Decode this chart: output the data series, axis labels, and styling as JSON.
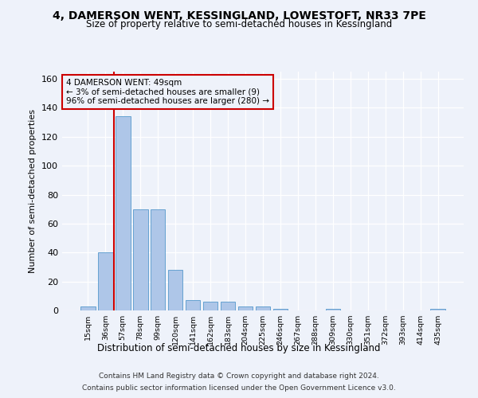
{
  "title": "4, DAMERSON WENT, KESSINGLAND, LOWESTOFT, NR33 7PE",
  "subtitle": "Size of property relative to semi-detached houses in Kessingland",
  "xlabel": "Distribution of semi-detached houses by size in Kessingland",
  "ylabel": "Number of semi-detached properties",
  "footer_line1": "Contains HM Land Registry data © Crown copyright and database right 2024.",
  "footer_line2": "Contains public sector information licensed under the Open Government Licence v3.0.",
  "annotation_line1": "4 DAMERSON WENT: 49sqm",
  "annotation_line2": "← 3% of semi-detached houses are smaller (9)",
  "annotation_line3": "96% of semi-detached houses are larger (280) →",
  "bar_color": "#aec6e8",
  "bar_edge_color": "#5599cc",
  "marker_color": "#cc0000",
  "background_color": "#eef2fa",
  "categories": [
    "15sqm",
    "36sqm",
    "57sqm",
    "78sqm",
    "99sqm",
    "120sqm",
    "141sqm",
    "162sqm",
    "183sqm",
    "204sqm",
    "225sqm",
    "246sqm",
    "267sqm",
    "288sqm",
    "309sqm",
    "330sqm",
    "351sqm",
    "372sqm",
    "393sqm",
    "414sqm",
    "435sqm"
  ],
  "values": [
    3,
    40,
    134,
    70,
    70,
    28,
    7,
    6,
    6,
    3,
    3,
    1,
    0,
    0,
    1,
    0,
    0,
    0,
    0,
    0,
    1
  ],
  "property_bin_index": 1,
  "ylim": [
    0,
    165
  ],
  "yticks": [
    0,
    20,
    40,
    60,
    80,
    100,
    120,
    140,
    160
  ]
}
